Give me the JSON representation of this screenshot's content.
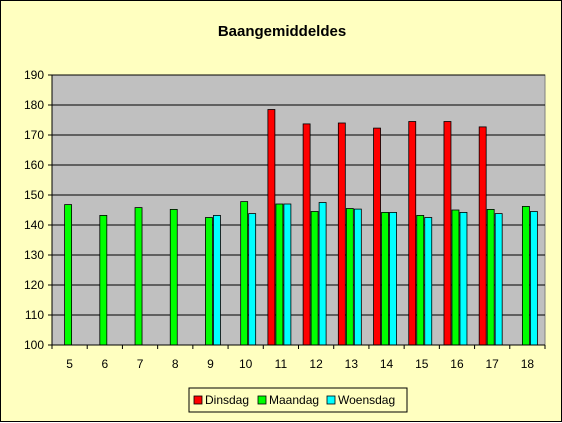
{
  "colors": {
    "chart_area": "#FFFFC0",
    "plot_area": "#C0C0C0",
    "gridline": "#000000",
    "bar_outline": "#000000"
  },
  "chart_data": {
    "type": "bar",
    "title": "Baangemiddeldes",
    "xlabel": "",
    "ylabel": "",
    "ylim": [
      100,
      190
    ],
    "yticks": [
      100,
      110,
      120,
      130,
      140,
      150,
      160,
      170,
      180,
      190
    ],
    "categories": [
      "5",
      "6",
      "7",
      "8",
      "9",
      "10",
      "11",
      "12",
      "13",
      "14",
      "15",
      "16",
      "17",
      "18"
    ],
    "grid": true,
    "legend": "bottom",
    "series": [
      {
        "name": "Dinsdag",
        "color": "#FF0000",
        "values": [
          null,
          null,
          null,
          null,
          null,
          null,
          178.5,
          173.7,
          174,
          172.3,
          174.5,
          174.5,
          172.7,
          null
        ]
      },
      {
        "name": "Maandag",
        "color": "#00FF00",
        "values": [
          146.8,
          143.2,
          145.8,
          145.2,
          142.5,
          147.8,
          147,
          144.5,
          145.5,
          144.2,
          143.2,
          145,
          145.2,
          146.2
        ]
      },
      {
        "name": "Woensdag",
        "color": "#00FFFF",
        "values": [
          null,
          null,
          null,
          null,
          143.2,
          143.8,
          147,
          147.5,
          145.3,
          144.2,
          142.5,
          144.2,
          143.8,
          144.5
        ]
      }
    ]
  }
}
